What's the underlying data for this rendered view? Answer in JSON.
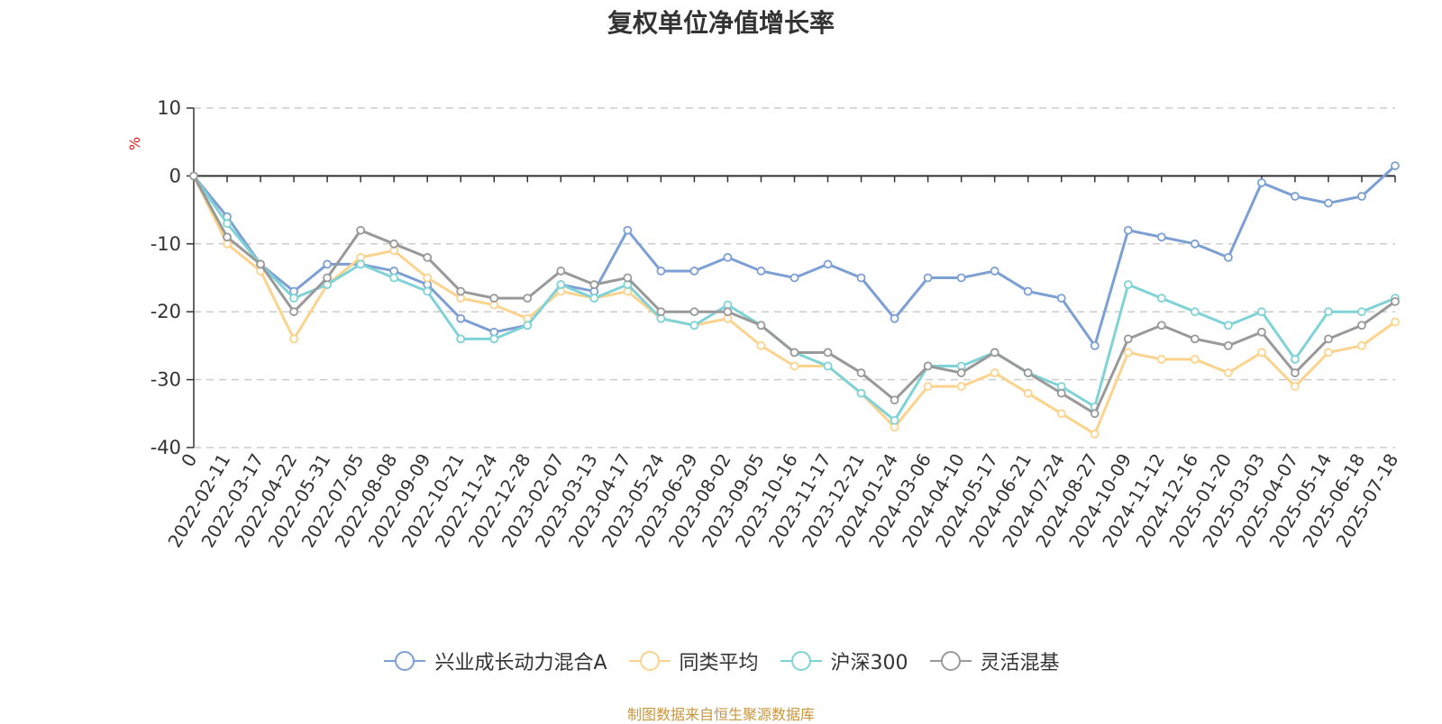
{
  "chart_data": {
    "type": "line",
    "title": "复权单位净值增长率",
    "y_unit": "%",
    "ylim": [
      -40,
      10
    ],
    "y_ticks": [
      "10",
      "0",
      "-10",
      "-20",
      "-30",
      "-40"
    ],
    "y_tick_values": [
      10,
      0,
      -10,
      -20,
      -30,
      -40
    ],
    "grid": "dashed horizontal",
    "legend_position": "bottom",
    "x_start_label": "0",
    "categories": [
      "2022-02-11",
      "2022-03-17",
      "2022-04-22",
      "2022-05-31",
      "2022-07-05",
      "2022-08-08",
      "2022-09-09",
      "2022-10-21",
      "2022-11-24",
      "2022-12-28",
      "2023-02-07",
      "2023-03-13",
      "2023-04-17",
      "2023-05-24",
      "2023-06-29",
      "2023-08-02",
      "2023-09-05",
      "2023-10-16",
      "2023-11-17",
      "2023-12-21",
      "2024-01-24",
      "2024-03-06",
      "2024-04-10",
      "2024-05-17",
      "2024-06-21",
      "2024-07-24",
      "2024-08-27",
      "2024-10-09",
      "2024-11-12",
      "2024-12-16",
      "2025-01-20",
      "2025-03-03",
      "2025-04-07",
      "2025-05-14",
      "2025-06-18",
      "2025-07-18"
    ],
    "series": [
      {
        "name": "兴业成长动力混合A",
        "color": "#7c9fd4",
        "values": [
          -6,
          -13,
          -17,
          -13,
          -13,
          -14,
          -16,
          -21,
          -23,
          -22,
          -16,
          -17,
          -8,
          -14,
          -14,
          -12,
          -14,
          -15,
          -13,
          -15,
          -21,
          -15,
          -15,
          -14,
          -17,
          -18,
          -25,
          -8,
          -9,
          -10,
          -12,
          -1,
          -3,
          -4,
          -3,
          1.5
        ]
      },
      {
        "name": "同类平均",
        "color": "#fbd38d",
        "values": [
          -10,
          -14,
          -24,
          -16,
          -12,
          -11,
          -15,
          -18,
          -19,
          -21,
          -17,
          -18,
          -17,
          -21,
          -22,
          -21,
          -25,
          -28,
          -28,
          -32,
          -37,
          -31,
          -31,
          -29,
          -32,
          -35,
          -38,
          -26,
          -27,
          -27,
          -29,
          -26,
          -31,
          -26,
          -25,
          -21.5
        ]
      },
      {
        "name": "沪深300",
        "color": "#7fd3d7",
        "values": [
          -7,
          -13,
          -18,
          -16,
          -13,
          -15,
          -17,
          -24,
          -24,
          -22,
          -16,
          -18,
          -16,
          -21,
          -22,
          -19,
          -22,
          -26,
          -28,
          -32,
          -36,
          -28,
          -28,
          -26,
          -29,
          -31,
          -34,
          -16,
          -18,
          -20,
          -22,
          -20,
          -27,
          -20,
          -20,
          -18
        ]
      },
      {
        "name": "灵活混基",
        "color": "#999999",
        "values": [
          -9,
          -13,
          -20,
          -15,
          -8,
          -10,
          -12,
          -17,
          -18,
          -18,
          -14,
          -16,
          -15,
          -20,
          -20,
          -20,
          -22,
          -26,
          -26,
          -29,
          -33,
          -28,
          -29,
          -26,
          -29,
          -32,
          -35,
          -24,
          -22,
          -24,
          -25,
          -23,
          -29,
          -24,
          -22,
          -18.5
        ]
      }
    ],
    "source": "制图数据来自恒生聚源数据库"
  }
}
